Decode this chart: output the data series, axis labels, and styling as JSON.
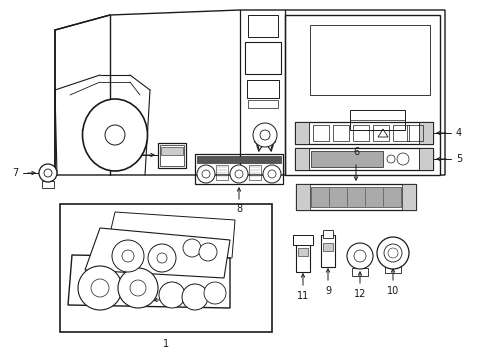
{
  "bg_color": "#ffffff",
  "line_color": "#1a1a1a",
  "gray_fill": "#aaaaaa",
  "med_gray": "#888888",
  "light_gray": "#cccccc",
  "dark_gray": "#555555",
  "fig_width": 4.89,
  "fig_height": 3.6,
  "dpi": 100
}
